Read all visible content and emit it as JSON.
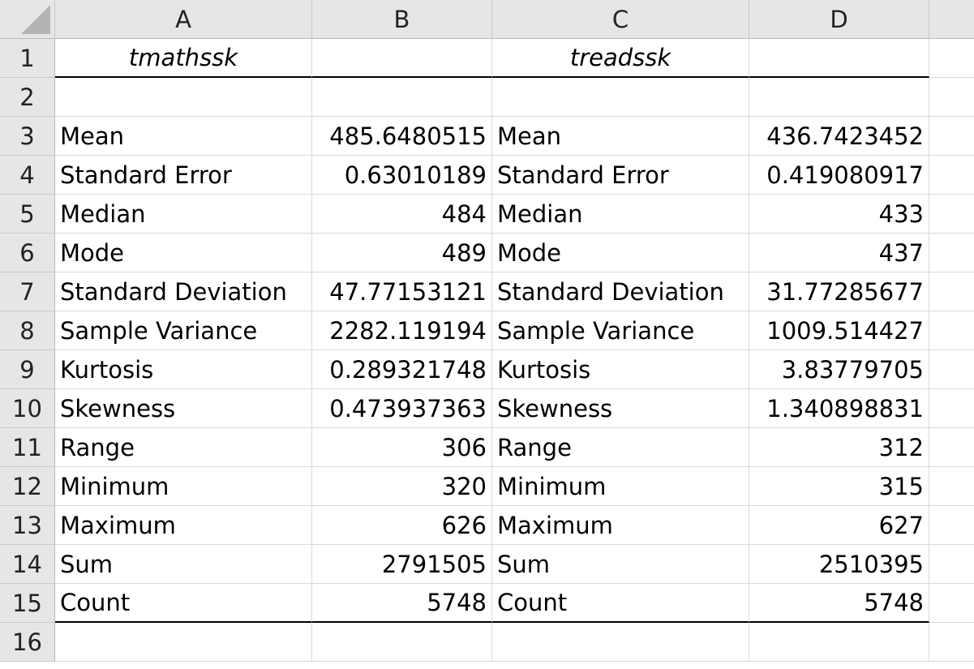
{
  "columns": [
    "A",
    "B",
    "C",
    "D"
  ],
  "rows": [
    "1",
    "2",
    "3",
    "4",
    "5",
    "6",
    "7",
    "8",
    "9",
    "10",
    "11",
    "12",
    "13",
    "14",
    "15",
    "16"
  ],
  "headers": {
    "left": "tmathssk",
    "right": "treadssk"
  },
  "stats": [
    {
      "label": "Mean",
      "left": "485.6480515",
      "right": "436.7423452"
    },
    {
      "label": "Standard Error",
      "left": "0.63010189",
      "right": "0.419080917"
    },
    {
      "label": "Median",
      "left": "484",
      "right": "433"
    },
    {
      "label": "Mode",
      "left": "489",
      "right": "437"
    },
    {
      "label": "Standard Deviation",
      "left": "47.77153121",
      "right": "31.77285677"
    },
    {
      "label": "Sample Variance",
      "left": "2282.119194",
      "right": "1009.514427"
    },
    {
      "label": "Kurtosis",
      "left": "0.289321748",
      "right": "3.83779705"
    },
    {
      "label": "Skewness",
      "left": "0.473937363",
      "right": "1.340898831"
    },
    {
      "label": "Range",
      "left": "306",
      "right": "312"
    },
    {
      "label": "Minimum",
      "left": "320",
      "right": "315"
    },
    {
      "label": "Maximum",
      "left": "626",
      "right": "627"
    },
    {
      "label": "Sum",
      "left": "2791505",
      "right": "2510395"
    },
    {
      "label": "Count",
      "left": "5748",
      "right": "5748"
    }
  ]
}
